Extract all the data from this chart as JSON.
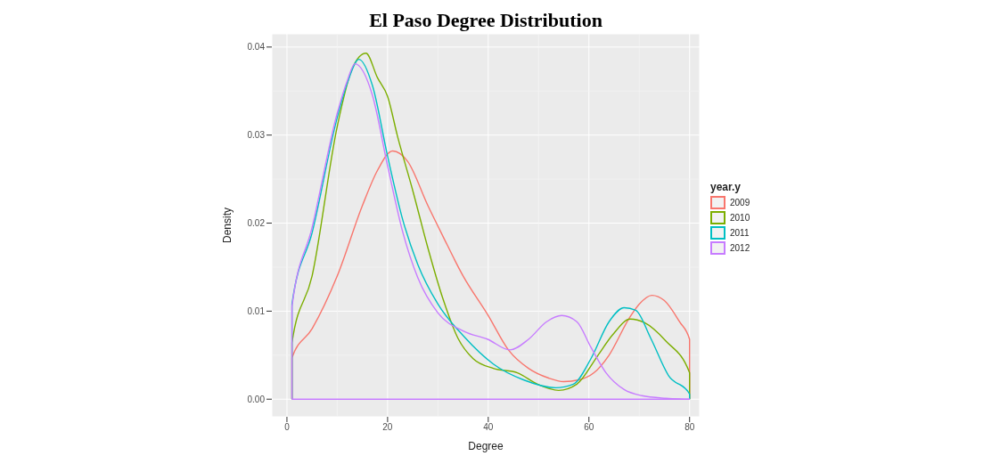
{
  "chart_data": {
    "type": "line",
    "title": "El Paso Degree Distribution",
    "xlabel": "Degree",
    "ylabel": "Density",
    "legend_title": "year.y",
    "legend": "right",
    "grid": true,
    "marker": "none",
    "line_style": "solid",
    "xlim": [
      -3,
      82
    ],
    "xticks": [
      0,
      20,
      40,
      60,
      80
    ],
    "ylim": [
      -0.002,
      0.0415
    ],
    "yticks": [
      {
        "value": 0,
        "label": "0.00"
      },
      {
        "value": 0.01,
        "label": "0.01"
      },
      {
        "value": 0.02,
        "label": "0.02"
      },
      {
        "value": 0.03,
        "label": "0.03"
      },
      {
        "value": 0.04,
        "label": "0.04"
      }
    ],
    "series": [
      {
        "name": "2009",
        "color": "#f8766d",
        "x": [
          1,
          1,
          5,
          10,
          15,
          18,
          21,
          24,
          28,
          31,
          35,
          40,
          44,
          48,
          52,
          55,
          58,
          61,
          64,
          68,
          70,
          72.5,
          75,
          78,
          80,
          80
        ],
        "values": [
          0,
          0.0047,
          0.008,
          0.014,
          0.022,
          0.026,
          0.0282,
          0.027,
          0.022,
          0.0185,
          0.014,
          0.0095,
          0.0056,
          0.0035,
          0.0024,
          0.002,
          0.0022,
          0.003,
          0.005,
          0.0092,
          0.0108,
          0.0118,
          0.0112,
          0.0088,
          0.0068,
          0
        ]
      },
      {
        "name": "2010",
        "color": "#7cae00",
        "x": [
          1,
          1,
          5,
          10,
          13,
          15.7,
          18,
          20,
          22,
          25,
          28,
          31,
          34,
          37,
          41,
          45.8,
          49.8,
          54,
          57.6,
          61.7,
          64.7,
          68.2,
          71,
          75.3,
          80,
          80
        ],
        "values": [
          0,
          0.0064,
          0.014,
          0.031,
          0.0376,
          0.0393,
          0.0365,
          0.0344,
          0.0298,
          0.0237,
          0.0172,
          0.0114,
          0.0069,
          0.0046,
          0.0035,
          0.003,
          0.0017,
          0.001,
          0.0017,
          0.0049,
          0.0073,
          0.0091,
          0.0087,
          0.0066,
          0.003,
          0
        ]
      },
      {
        "name": "2011",
        "color": "#00bfc4",
        "x": [
          1,
          1,
          5,
          10,
          12,
          14.3,
          17,
          20,
          23,
          26,
          30,
          35.2,
          41,
          47,
          53.4,
          56.9,
          60.4,
          64,
          67,
          69.3,
          72.3,
          75.8,
          80,
          80
        ],
        "values": [
          0,
          0.0108,
          0.0189,
          0.032,
          0.0359,
          0.0386,
          0.0356,
          0.0276,
          0.0204,
          0.0153,
          0.0108,
          0.0071,
          0.004,
          0.0022,
          0.0013,
          0.0017,
          0.0046,
          0.0088,
          0.0104,
          0.0101,
          0.0069,
          0.0027,
          0.0006,
          0
        ]
      },
      {
        "name": "2012",
        "color": "#c77cff",
        "x": [
          1,
          1,
          5,
          10,
          12,
          13.5,
          17,
          20,
          23,
          26,
          30,
          35.2,
          39.9,
          44.3,
          48,
          51.6,
          54.6,
          57.6,
          60.4,
          63.4,
          67,
          70.5,
          75.3,
          80
        ],
        "values": [
          0,
          0.0105,
          0.0195,
          0.0325,
          0.0362,
          0.0381,
          0.0345,
          0.0265,
          0.019,
          0.0138,
          0.0098,
          0.0077,
          0.0068,
          0.0056,
          0.0068,
          0.0088,
          0.0095,
          0.0088,
          0.0059,
          0.003,
          0.0011,
          0.0004,
          0.0001,
          0
        ]
      },
      {
        "color": "#c77cff",
        "x": [
          1,
          80
        ],
        "values": [
          0,
          0
        ]
      }
    ]
  }
}
